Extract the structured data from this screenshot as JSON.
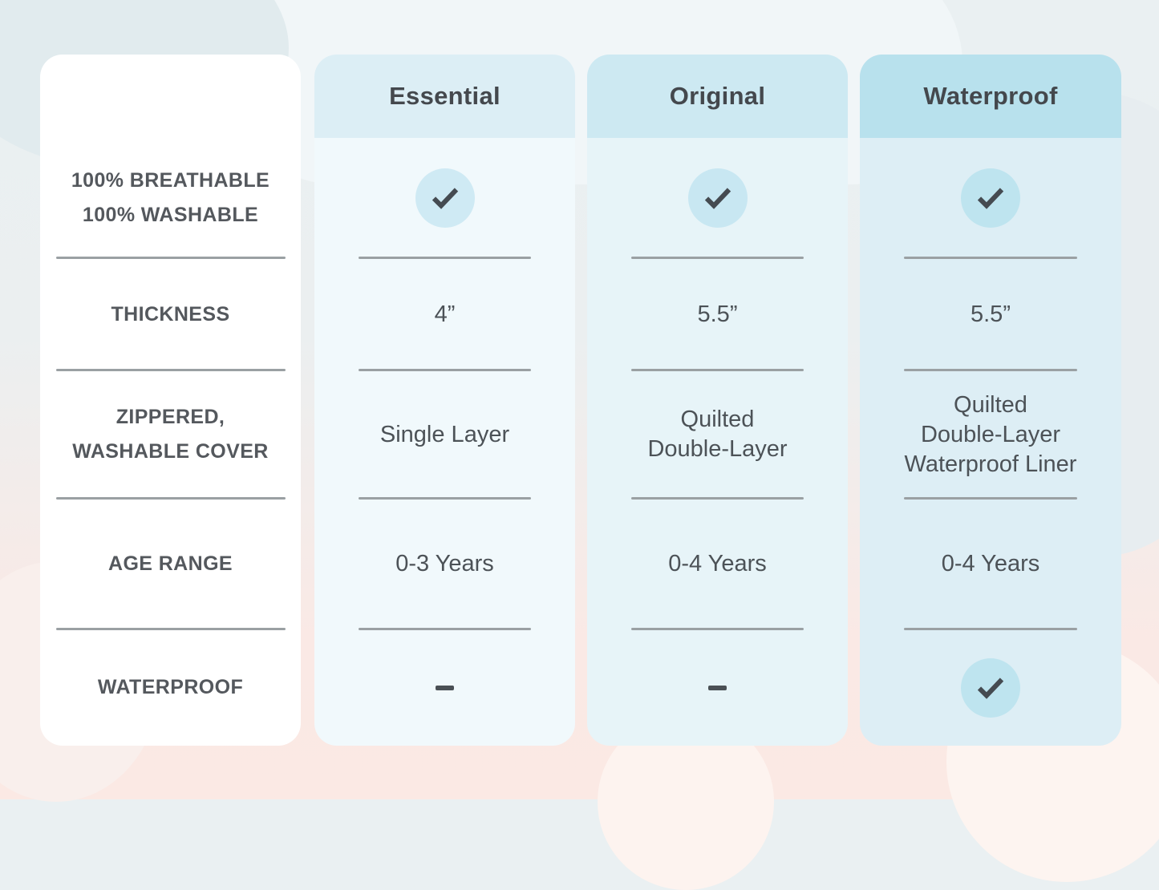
{
  "page": {
    "title": "Crib mattress comparison table"
  },
  "table": {
    "row_labels": [
      {
        "lines": [
          "100% BREATHABLE",
          "100% WASHABLE"
        ]
      },
      {
        "lines": [
          "THICKNESS"
        ]
      },
      {
        "lines": [
          "ZIPPERED,",
          "WASHABLE COVER"
        ]
      },
      {
        "lines": [
          "AGE RANGE"
        ]
      },
      {
        "lines": [
          "WATERPROOF"
        ]
      }
    ],
    "columns": [
      {
        "name": "Essential",
        "header_bg": "#dceef5",
        "body_bg": "#f1f9fc",
        "circle_color": "#cfeaf4",
        "cells": [
          {
            "type": "check"
          },
          {
            "type": "text",
            "lines": [
              "4”"
            ]
          },
          {
            "type": "text",
            "lines": [
              "Single Layer"
            ]
          },
          {
            "type": "text",
            "lines": [
              "0-3 Years"
            ]
          },
          {
            "type": "dash"
          }
        ]
      },
      {
        "name": "Original",
        "header_bg": "#cde9f2",
        "body_bg": "#e7f4f8",
        "circle_color": "#c8e7f2",
        "cells": [
          {
            "type": "check"
          },
          {
            "type": "text",
            "lines": [
              "5.5”"
            ]
          },
          {
            "type": "text",
            "lines": [
              "Quilted",
              "Double-Layer"
            ]
          },
          {
            "type": "text",
            "lines": [
              "0-4 Years"
            ]
          },
          {
            "type": "dash"
          }
        ]
      },
      {
        "name": "Waterproof",
        "header_bg": "#b8e1ed",
        "body_bg": "#ddeef5",
        "circle_color": "#bee4ef",
        "cells": [
          {
            "type": "check"
          },
          {
            "type": "text",
            "lines": [
              "5.5”"
            ]
          },
          {
            "type": "text",
            "lines": [
              "Quilted",
              "Double-Layer",
              "Waterproof Liner"
            ]
          },
          {
            "type": "text",
            "lines": [
              "0-4 Years"
            ]
          },
          {
            "type": "check"
          }
        ]
      }
    ]
  },
  "colors": {
    "label_text": "#54585d",
    "value_text": "#4c5257",
    "header_text": "#44484d",
    "separator": "#9aa0a3",
    "check_stroke": "#454b51",
    "left_card_bg": "#ffffff",
    "background_top": "#eaf0f2",
    "background_bottom": "#fbe9e4"
  }
}
